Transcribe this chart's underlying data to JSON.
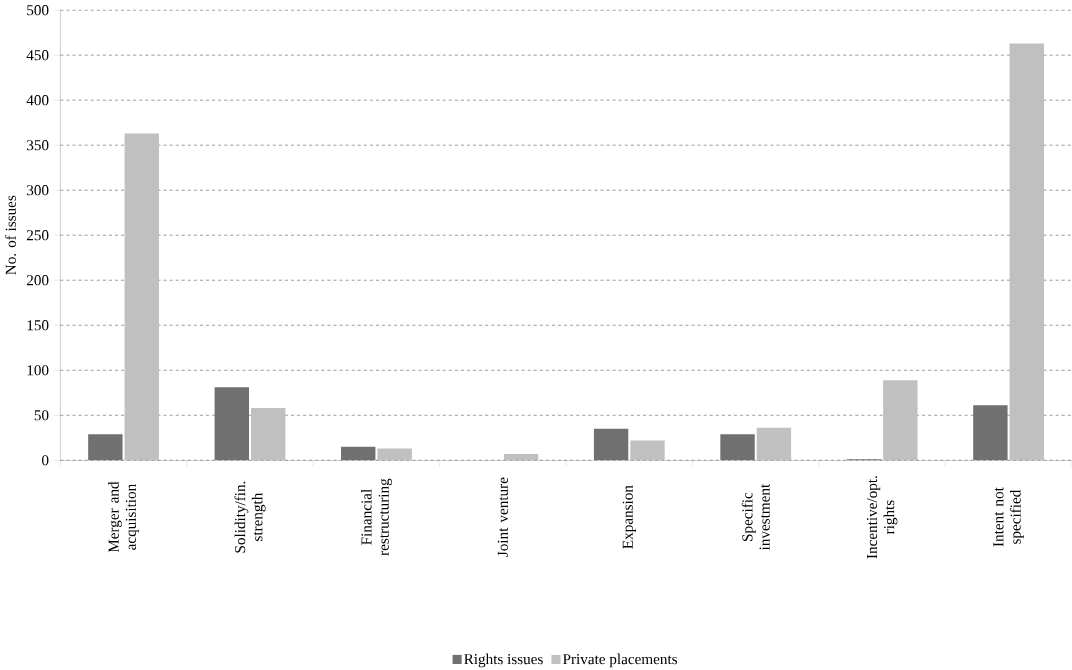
{
  "chart_data": {
    "type": "bar",
    "ylabel": "No. of issues",
    "categories": [
      "Merger and acquisition",
      "Solidity/fin. strength",
      "Financial restructuring",
      "Joint venture",
      "Expansion",
      "Specific investment",
      "Incentive/opt. rights",
      "Intent not specified"
    ],
    "series": [
      {
        "name": "Rights issues",
        "color": "#707070",
        "values": [
          29,
          81,
          15,
          0,
          35,
          29,
          1,
          61
        ]
      },
      {
        "name": "Private placements",
        "color": "#c0c0c0",
        "values": [
          363,
          58,
          13,
          7,
          22,
          36,
          89,
          463
        ]
      }
    ],
    "ylim": [
      0,
      500
    ],
    "yticks": [
      0,
      50,
      100,
      150,
      200,
      250,
      300,
      350,
      400,
      450,
      500
    ],
    "grid": "y",
    "legend": "bottom"
  }
}
